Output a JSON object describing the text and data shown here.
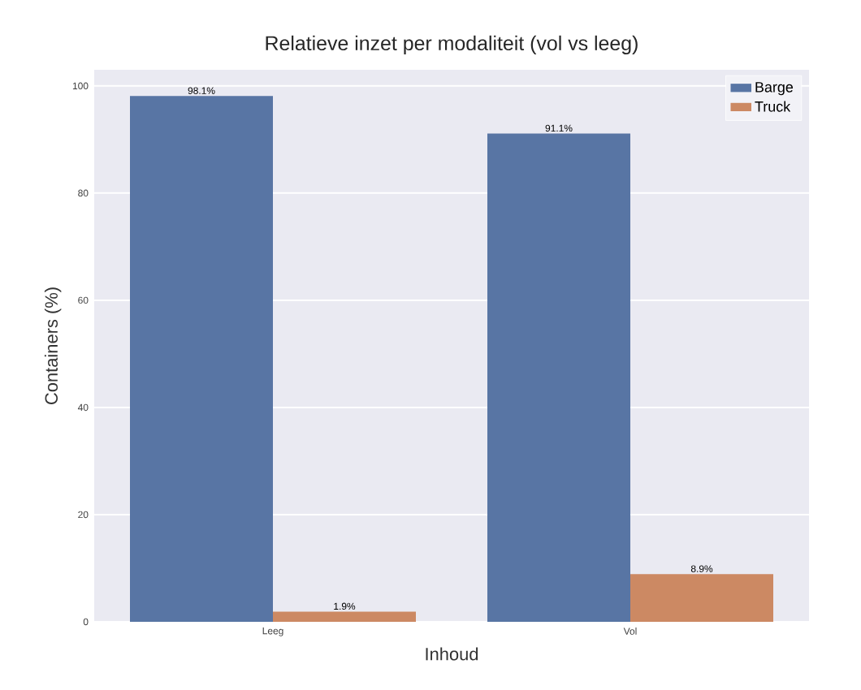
{
  "chart_data": {
    "type": "bar",
    "title": "Relatieve inzet per modaliteit (vol vs leeg)",
    "xlabel": "Inhoud",
    "ylabel": "Containers (%)",
    "categories": [
      "Leeg",
      "Vol"
    ],
    "series": [
      {
        "name": "Barge",
        "color": "#5875a4",
        "values": [
          98.1,
          91.1
        ],
        "value_labels": [
          "98.1%",
          "91.1%"
        ]
      },
      {
        "name": "Truck",
        "color": "#cc8963",
        "values": [
          1.9,
          8.9
        ],
        "value_labels": [
          "1.9%",
          "8.9%"
        ]
      }
    ],
    "ylim": [
      0,
      103
    ],
    "yticks": [
      0,
      20,
      40,
      60,
      80,
      100
    ],
    "grid": "y",
    "legend": "top right"
  }
}
